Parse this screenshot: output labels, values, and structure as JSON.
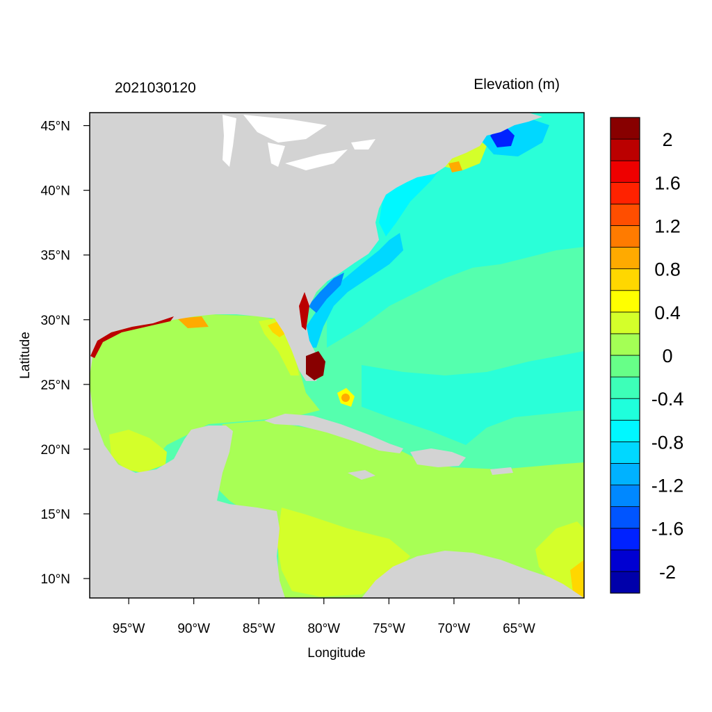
{
  "plot": {
    "date_label": "2021030120",
    "variable_label": "Elevation (m)",
    "xlabel": "Longitude",
    "ylabel": "Latitude"
  },
  "axes": {
    "x_ticks": [
      {
        "value": -95,
        "label": "95°W"
      },
      {
        "value": -90,
        "label": "90°W"
      },
      {
        "value": -85,
        "label": "85°W"
      },
      {
        "value": -80,
        "label": "80°W"
      },
      {
        "value": -75,
        "label": "75°W"
      },
      {
        "value": -70,
        "label": "70°W"
      },
      {
        "value": -65,
        "label": "65°W"
      }
    ],
    "y_ticks": [
      {
        "value": 10,
        "label": "10°N"
      },
      {
        "value": 15,
        "label": "15°N"
      },
      {
        "value": 20,
        "label": "20°N"
      },
      {
        "value": 25,
        "label": "25°N"
      },
      {
        "value": 30,
        "label": "30°N"
      },
      {
        "value": 35,
        "label": "35°N"
      },
      {
        "value": 40,
        "label": "40°N"
      },
      {
        "value": 45,
        "label": "45°N"
      }
    ],
    "lon_range": [
      -98,
      -60
    ],
    "lat_range": [
      8.5,
      46
    ]
  },
  "colorbar": {
    "boundaries": [
      -2.2,
      -2.0,
      -1.8,
      -1.6,
      -1.4,
      -1.2,
      -1.0,
      -0.8,
      -0.6,
      -0.4,
      -0.2,
      0.0,
      0.2,
      0.4,
      0.6,
      0.8,
      1.0,
      1.2,
      1.4,
      1.6,
      1.8,
      2.0,
      2.2
    ],
    "colors": [
      "#0000aa",
      "#0000d2",
      "#0022ff",
      "#0055ff",
      "#0088ff",
      "#00b2ff",
      "#00d8ff",
      "#00f8ff",
      "#1fffdc",
      "#3dffb8",
      "#67ff88",
      "#a4ff55",
      "#d4ff2a",
      "#ffff00",
      "#ffd700",
      "#ffaa00",
      "#ff7b00",
      "#ff4e00",
      "#ff2200",
      "#ee0000",
      "#bb0000",
      "#880000"
    ],
    "labels": [
      {
        "value": 2.0,
        "label": "2"
      },
      {
        "value": 1.6,
        "label": "1.6"
      },
      {
        "value": 1.2,
        "label": "1.2"
      },
      {
        "value": 0.8,
        "label": "0.8"
      },
      {
        "value": 0.4,
        "label": "0.4"
      },
      {
        "value": 0.0,
        "label": "0"
      },
      {
        "value": -0.4,
        "label": "-0.4"
      },
      {
        "value": -0.8,
        "label": "-0.8"
      },
      {
        "value": -1.2,
        "label": "-1.2"
      },
      {
        "value": -1.6,
        "label": "-1.6"
      },
      {
        "value": -2.0,
        "label": "-2"
      }
    ]
  },
  "colors": {
    "land": "#d3d3d3",
    "gulf_caribbean": "#a8ff55",
    "atlantic": "#2affd8",
    "atlantic_east": "#55ffae"
  }
}
